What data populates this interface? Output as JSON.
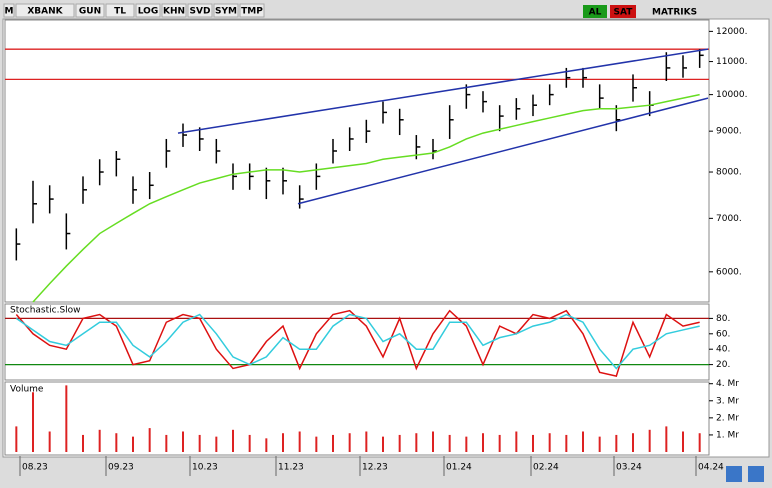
{
  "toolbar": {
    "items": [
      "M",
      "XBANK",
      "GUN",
      "TL",
      "LOG",
      "KHN",
      "SVD",
      "SYM",
      "TMP"
    ],
    "buy": "AL",
    "sell": "SAT",
    "brand": "MATRIKS"
  },
  "chart_data": [
    {
      "type": "ohlc",
      "color": "#000000",
      "log": true,
      "xlim": [
        0,
        42
      ],
      "ylim": [
        5500,
        12400
      ],
      "yticks": [
        {
          "value": 12000,
          "label": "12000."
        },
        {
          "value": 11000,
          "label": "11000."
        },
        {
          "value": 10000,
          "label": "10000."
        },
        {
          "value": 9000,
          "label": "9000."
        },
        {
          "value": 8000,
          "label": "8000."
        },
        {
          "value": 7000,
          "label": "7000."
        },
        {
          "value": 6000,
          "label": "6000."
        }
      ],
      "high": [
        6800,
        7800,
        7700,
        7100,
        7900,
        8300,
        8500,
        7900,
        8000,
        8800,
        9200,
        9100,
        8800,
        8200,
        8200,
        8100,
        8100,
        7700,
        8200,
        8800,
        9100,
        9300,
        9800,
        9600,
        8900,
        8800,
        9700,
        10300,
        10100,
        9700,
        9900,
        10000,
        10300,
        10800,
        10800,
        10300,
        9700,
        10600,
        10100,
        11300,
        11200,
        11400
      ],
      "low": [
        6200,
        6900,
        7100,
        6400,
        7300,
        7700,
        7900,
        7300,
        7400,
        8100,
        8600,
        8500,
        8200,
        7600,
        7600,
        7400,
        7500,
        7200,
        7600,
        8200,
        8500,
        8700,
        9200,
        8900,
        8300,
        8300,
        8800,
        9600,
        9500,
        9000,
        9300,
        9400,
        9700,
        10200,
        10200,
        9600,
        9000,
        9800,
        9400,
        10400,
        10500,
        10800
      ],
      "values": [
        6500,
        7300,
        7400,
        6700,
        7600,
        8000,
        8300,
        7600,
        7700,
        8500,
        8900,
        8800,
        8500,
        7900,
        7900,
        7800,
        7800,
        7400,
        7900,
        8500,
        8800,
        9000,
        9500,
        9300,
        8600,
        8500,
        9300,
        10000,
        9800,
        9400,
        9600,
        9700,
        10000,
        10500,
        10500,
        9900,
        9300,
        10200,
        9700,
        10800,
        10800,
        11200
      ],
      "ma": {
        "color": "#66dd22",
        "values": [
          null,
          5500,
          5800,
          6100,
          6400,
          6700,
          6900,
          7100,
          7300,
          7450,
          7600,
          7750,
          7850,
          7950,
          8000,
          8050,
          8050,
          8000,
          8050,
          8100,
          8150,
          8200,
          8300,
          8350,
          8400,
          8450,
          8600,
          8800,
          8950,
          9050,
          9150,
          9250,
          9350,
          9450,
          9550,
          9600,
          9600,
          9650,
          9700,
          9800,
          9900,
          10000
        ]
      },
      "hlines": [
        {
          "value": 11400,
          "color": "#dd2222"
        },
        {
          "value": 10450,
          "color": "#dd2222"
        }
      ],
      "trendlines": [
        {
          "x": [
            10.2,
            42
          ],
          "y": [
            8950,
            11400
          ],
          "color": "#2233aa"
        },
        {
          "x": [
            17.4,
            42
          ],
          "y": [
            7300,
            9900
          ],
          "color": "#2233aa"
        }
      ]
    },
    {
      "type": "line",
      "title": "Stochastic.Slow",
      "xlim": [
        0,
        42
      ],
      "ylim": [
        0,
        100
      ],
      "yticks": [
        {
          "value": 80,
          "label": "80."
        },
        {
          "value": 60,
          "label": "60."
        },
        {
          "value": 40,
          "label": "40."
        },
        {
          "value": 20,
          "label": "20."
        }
      ],
      "hlines": [
        {
          "value": 80,
          "color": "#aa1111"
        },
        {
          "value": 20,
          "color": "#118811"
        }
      ],
      "series": [
        {
          "color": "#dd1111",
          "values": [
            85,
            60,
            45,
            40,
            80,
            85,
            70,
            20,
            25,
            75,
            85,
            80,
            40,
            15,
            20,
            50,
            70,
            15,
            60,
            85,
            90,
            70,
            30,
            80,
            15,
            60,
            90,
            70,
            20,
            70,
            60,
            85,
            80,
            90,
            60,
            10,
            5,
            75,
            30,
            85,
            70,
            75
          ]
        },
        {
          "color": "#33ccdd",
          "values": [
            80,
            65,
            50,
            45,
            60,
            75,
            75,
            45,
            30,
            50,
            75,
            85,
            60,
            30,
            20,
            30,
            55,
            40,
            40,
            70,
            85,
            80,
            50,
            60,
            40,
            40,
            75,
            75,
            45,
            55,
            60,
            70,
            75,
            85,
            75,
            40,
            15,
            40,
            45,
            60,
            65,
            70
          ]
        }
      ]
    },
    {
      "type": "bar",
      "title": "Volume",
      "color": "#dd2222",
      "xlim": [
        0,
        42
      ],
      "ylim": [
        0,
        4.1
      ],
      "yticks": [
        {
          "value": 4,
          "label": "4. Mr"
        },
        {
          "value": 3,
          "label": "3. Mr"
        },
        {
          "value": 2,
          "label": "2. Mr"
        },
        {
          "value": 1,
          "label": "1. Mr"
        }
      ],
      "values": [
        1.5,
        3.5,
        1.2,
        3.9,
        1.0,
        1.3,
        1.1,
        0.9,
        1.4,
        1.0,
        1.2,
        1.0,
        0.9,
        1.3,
        1.0,
        0.8,
        1.1,
        1.2,
        0.9,
        1.0,
        1.1,
        1.2,
        0.9,
        1.0,
        1.1,
        1.2,
        1.0,
        0.9,
        1.1,
        1.0,
        1.2,
        1.0,
        1.1,
        1.0,
        1.2,
        0.9,
        1.0,
        1.1,
        1.3,
        1.5,
        1.2,
        1.1
      ],
      "xticks": [
        {
          "value": 0.84,
          "label": "08.23"
        },
        {
          "value": 6.0,
          "label": "09.23"
        },
        {
          "value": 11.04,
          "label": "10.23"
        },
        {
          "value": 16.2,
          "label": "11.23"
        },
        {
          "value": 21.24,
          "label": "12.23"
        },
        {
          "value": 26.28,
          "label": "01.24"
        },
        {
          "value": 31.5,
          "label": "02.24"
        },
        {
          "value": 36.48,
          "label": "03.24"
        },
        {
          "value": 41.4,
          "label": "04.24"
        }
      ]
    }
  ]
}
